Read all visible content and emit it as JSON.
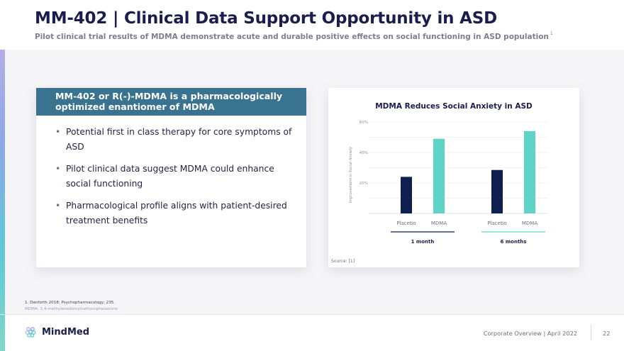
{
  "header": {
    "title": "MM-402 | Clinical Data Support Opportunity in ASD",
    "subtitle": "Pilot clinical trial results of MDMA demonstrate acute and durable positive effects on social functioning in ASD population",
    "subtitle_ref": "1"
  },
  "left_card": {
    "heading": "MM-402 or R(-)-MDMA is a pharmacologically optimized enantiomer of MDMA",
    "bullets": [
      "Potential first in class therapy for core symptoms of ASD",
      "Pilot clinical data suggest MDMA could enhance social functioning",
      "Pharmacological profile aligns with patient-desired treatment benefits"
    ]
  },
  "chart_data": {
    "type": "bar",
    "title": "MDMA Reduces Social Anxiety in ASD",
    "ylabel": "Improvement in Social Anxiety",
    "xlabel": "",
    "ylim": [
      0,
      60
    ],
    "yticks": [
      20,
      40,
      60
    ],
    "ytick_labels": [
      "20%",
      "40%",
      "60%"
    ],
    "grid": true,
    "groups": [
      "1 month",
      "6 months"
    ],
    "categories": [
      "Placebo",
      "MDMA"
    ],
    "series": [
      {
        "name": "Placebo",
        "color": "#0f1f4f",
        "values": [
          24,
          28.5
        ]
      },
      {
        "name": "MDMA",
        "color": "#5fd3c5",
        "values": [
          49,
          54
        ]
      }
    ],
    "group_underline_colors": [
      "#0f1f4f",
      "#5fd3c5"
    ],
    "source": "Source: [1]"
  },
  "footnotes": {
    "ref1": "1.  Danforth 2018; Psychopharmacology; 235.",
    "abbrev": "MDMA: 3,4-methylenedioxymethamphetamine"
  },
  "footer": {
    "brand": "MindMed",
    "text": "Corporate Overview | April 2022",
    "page": "22"
  }
}
